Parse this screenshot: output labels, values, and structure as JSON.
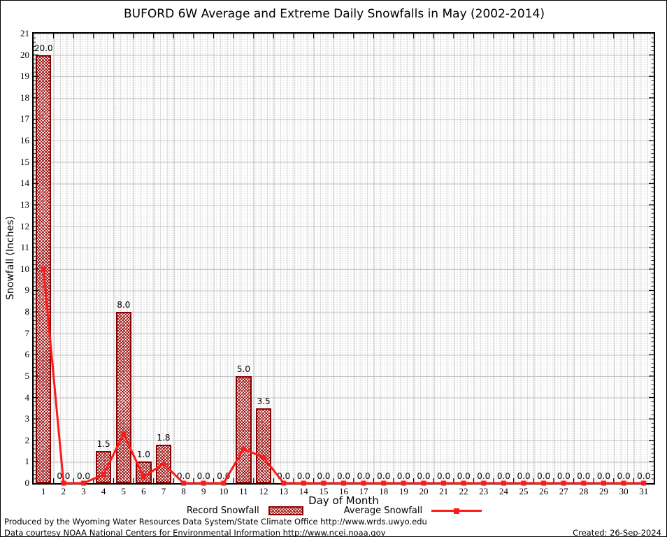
{
  "title": "BUFORD 6W Average and Extreme Daily Snowfalls in May (2002-2014)",
  "legend": {
    "record_label": "Record Snowfall",
    "average_label": "Average Snowfall"
  },
  "footer": {
    "line1": "Produced by the Wyoming Water Resources Data System/State Climate Office http://www.wrds.uwyo.edu",
    "line2": "Data courtesy NOAA National Centers for Environmental Information http://www.ncei.noaa.gov",
    "created": "Created: 26-Sep-2024"
  },
  "chart_data": {
    "type": "bar+line",
    "title": "BUFORD 6W Average and Extreme Daily Snowfalls in May (2002-2014)",
    "xlabel": "Day of Month",
    "ylabel": "Snowfall (Inches)",
    "ylim": [
      0,
      21
    ],
    "ytick_step": 1,
    "grid": true,
    "legend_position": "bottom",
    "categories": [
      1,
      2,
      3,
      4,
      5,
      6,
      7,
      8,
      9,
      10,
      11,
      12,
      13,
      14,
      15,
      16,
      17,
      18,
      19,
      20,
      21,
      22,
      23,
      24,
      25,
      26,
      27,
      28,
      29,
      30,
      31
    ],
    "series": [
      {
        "name": "Record Snowfall",
        "type": "bar",
        "values": [
          20.0,
          0.0,
          0.0,
          1.5,
          8.0,
          1.0,
          1.8,
          0.0,
          0.0,
          0.0,
          5.0,
          3.5,
          0.0,
          0.0,
          0.0,
          0.0,
          0.0,
          0.0,
          0.0,
          0.0,
          0.0,
          0.0,
          0.0,
          0.0,
          0.0,
          0.0,
          0.0,
          0.0,
          0.0,
          0.0,
          0.0
        ],
        "data_labels_visible": true
      },
      {
        "name": "Average Snowfall",
        "type": "line",
        "values": [
          10.0,
          0.0,
          0.0,
          0.4,
          2.3,
          0.3,
          0.9,
          0.0,
          0.0,
          0.0,
          1.6,
          1.2,
          0.0,
          0.0,
          0.0,
          0.0,
          0.0,
          0.0,
          0.0,
          0.0,
          0.0,
          0.0,
          0.0,
          0.0,
          0.0,
          0.0,
          0.0,
          0.0,
          0.0,
          0.0,
          0.0
        ]
      }
    ],
    "colors": {
      "bar_fill_hatch": "#960000",
      "bar_border": "#8b0000",
      "average_line": "#ff1a1a",
      "major_grid": "#c3c3c3",
      "minor_grid_dots": "#d7d7d7",
      "axis": "#000000",
      "background": "#ffffff"
    }
  }
}
